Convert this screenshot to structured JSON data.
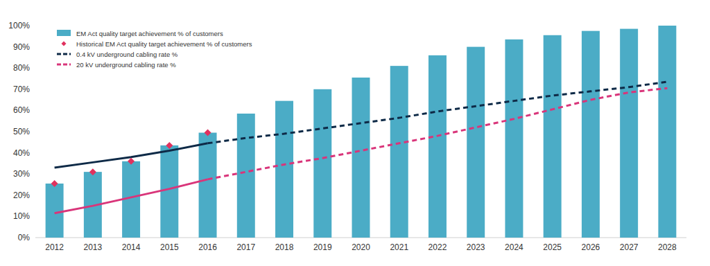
{
  "chart_data": {
    "type": "bar",
    "categories": [
      "2012",
      "2013",
      "2014",
      "2015",
      "2016",
      "2017",
      "2018",
      "2019",
      "2020",
      "2021",
      "2022",
      "2023",
      "2024",
      "2025",
      "2026",
      "2027",
      "2028"
    ],
    "series": [
      {
        "name": "EM Act quality target achievement % of customers",
        "type": "bar",
        "color": "#4bacc6",
        "values": [
          25.5,
          31,
          36,
          43.5,
          49.5,
          58.5,
          64.5,
          70,
          75.5,
          81,
          86,
          90,
          93.5,
          95.5,
          97.5,
          98.5,
          100
        ]
      },
      {
        "name": "Historical EM Act quality target achievement % of customers",
        "type": "scatter",
        "color": "#e0325f",
        "marker": "diamond",
        "values": [
          25.5,
          31,
          36,
          43.5,
          49.5,
          null,
          null,
          null,
          null,
          null,
          null,
          null,
          null,
          null,
          null,
          null,
          null
        ]
      },
      {
        "name": "0.4 kV underground cabling rate %",
        "type": "line",
        "color": "#0e2a47",
        "line_style": "dashed",
        "values": [
          33,
          35.5,
          38,
          41,
          44.5,
          47,
          49,
          51.5,
          54,
          56.5,
          59.5,
          62,
          64.5,
          67,
          69,
          71,
          73.5
        ]
      },
      {
        "name": "20 kV underground cabling rate %",
        "type": "line",
        "color": "#d9357a",
        "line_style": "dashed",
        "values": [
          11.5,
          15,
          19,
          23,
          27.5,
          31,
          34.5,
          37.5,
          41,
          44.5,
          48,
          52,
          56,
          60.5,
          65,
          68.5,
          70.5
        ]
      }
    ],
    "ylim": [
      0,
      100
    ],
    "yticks": [
      {
        "value": 0,
        "label": "0%"
      },
      {
        "value": 10,
        "label": "10%"
      },
      {
        "value": 20,
        "label": "20%"
      },
      {
        "value": 30,
        "label": "30%"
      },
      {
        "value": 40,
        "label": "40%"
      },
      {
        "value": 50,
        "label": "50%"
      },
      {
        "value": 60,
        "label": "60%"
      },
      {
        "value": 70,
        "label": "70%"
      },
      {
        "value": 80,
        "label": "80%"
      },
      {
        "value": 90,
        "label": "90%"
      },
      {
        "value": 100,
        "label": "100%"
      }
    ],
    "grid": false,
    "legend": "upper left"
  }
}
